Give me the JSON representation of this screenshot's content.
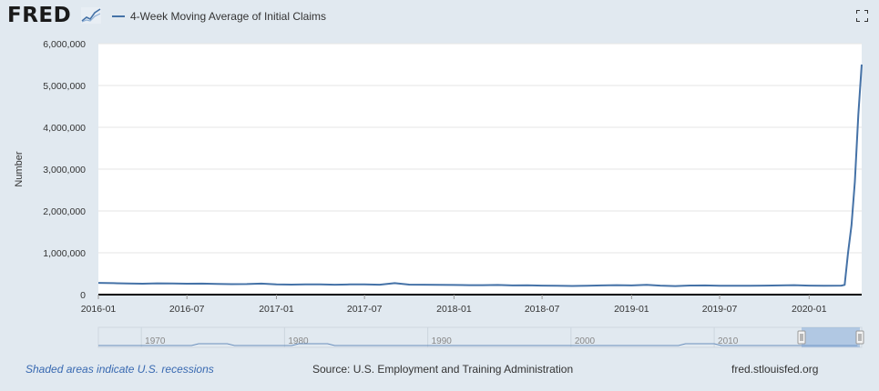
{
  "brand": {
    "logo_text": "FRED",
    "logo_icon": "chart-sparkline-icon"
  },
  "legend": {
    "label": "4-Week Moving Average of Initial Claims",
    "color": "#4572a7"
  },
  "toolbar": {
    "fullscreen_icon": "fullscreen-icon"
  },
  "chart_data": {
    "type": "line",
    "title": "",
    "ylabel": "Number",
    "xlabel": "",
    "ylim": [
      0,
      6000000
    ],
    "yticks": [
      0,
      1000000,
      2000000,
      3000000,
      4000000,
      5000000,
      6000000
    ],
    "ytick_labels": [
      "0",
      "1,000,000",
      "2,000,000",
      "3,000,000",
      "4,000,000",
      "5,000,000",
      "6,000,000"
    ],
    "xtick_labels": [
      "2016-01",
      "2016-07",
      "2017-01",
      "2017-07",
      "2018-01",
      "2018-07",
      "2019-01",
      "2019-07",
      "2020-01"
    ],
    "grid": true,
    "series": [
      {
        "color": "#4572a7",
        "points": [
          [
            "2016-01",
            280000
          ],
          [
            "2016-02",
            275000
          ],
          [
            "2016-03",
            265000
          ],
          [
            "2016-04",
            260000
          ],
          [
            "2016-05",
            270000
          ],
          [
            "2016-06",
            268000
          ],
          [
            "2016-07",
            260000
          ],
          [
            "2016-08",
            262000
          ],
          [
            "2016-09",
            255000
          ],
          [
            "2016-10",
            250000
          ],
          [
            "2016-11",
            253000
          ],
          [
            "2016-12",
            262000
          ],
          [
            "2017-01",
            245000
          ],
          [
            "2017-02",
            240000
          ],
          [
            "2017-03",
            245000
          ],
          [
            "2017-04",
            243000
          ],
          [
            "2017-05",
            238000
          ],
          [
            "2017-06",
            243000
          ],
          [
            "2017-07",
            243000
          ],
          [
            "2017-08",
            238000
          ],
          [
            "2017-09",
            275000
          ],
          [
            "2017-10",
            240000
          ],
          [
            "2017-11",
            238000
          ],
          [
            "2017-12",
            235000
          ],
          [
            "2018-01",
            230000
          ],
          [
            "2018-02",
            225000
          ],
          [
            "2018-03",
            226000
          ],
          [
            "2018-04",
            230000
          ],
          [
            "2018-05",
            220000
          ],
          [
            "2018-06",
            222000
          ],
          [
            "2018-07",
            215000
          ],
          [
            "2018-08",
            212000
          ],
          [
            "2018-09",
            207000
          ],
          [
            "2018-10",
            212000
          ],
          [
            "2018-11",
            220000
          ],
          [
            "2018-12",
            225000
          ],
          [
            "2019-01",
            220000
          ],
          [
            "2019-02",
            232000
          ],
          [
            "2019-03",
            215000
          ],
          [
            "2019-04",
            205000
          ],
          [
            "2019-05",
            217000
          ],
          [
            "2019-06",
            220000
          ],
          [
            "2019-07",
            212000
          ],
          [
            "2019-08",
            214000
          ],
          [
            "2019-09",
            213000
          ],
          [
            "2019-10",
            215000
          ],
          [
            "2019-11",
            220000
          ],
          [
            "2019-12",
            225000
          ],
          [
            "2020-01",
            215000
          ],
          [
            "2020-02",
            210000
          ],
          [
            "2020-03-07",
            215000
          ],
          [
            "2020-03-14",
            232000
          ],
          [
            "2020-03-21",
            998000
          ],
          [
            "2020-03-28",
            1656000
          ],
          [
            "2020-04-04",
            2700000
          ],
          [
            "2020-04-11",
            4300000
          ],
          [
            "2020-04-18",
            5500000
          ]
        ]
      }
    ],
    "navigator": {
      "labels": [
        "1970",
        "1980",
        "1990",
        "2000",
        "2010"
      ]
    }
  },
  "footer": {
    "recession_note": "Shaded areas indicate U.S. recessions",
    "source": "Source: U.S. Employment and Training Administration",
    "site": "fred.stlouisfed.org"
  }
}
